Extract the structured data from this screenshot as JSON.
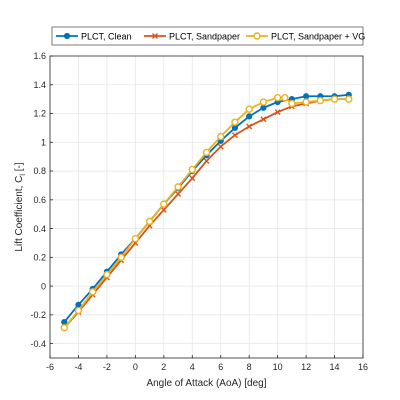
{
  "chart_data": {
    "type": "line",
    "title": "",
    "xlabel": "Angle of Attack (AoA) [deg]",
    "ylabel": "Lift Coefficient, C",
    "ylabel_subscript": "l",
    "ylabel_suffix": " [-]",
    "xlim": [
      -6,
      16
    ],
    "ylim": [
      -0.5,
      1.6
    ],
    "xticks": [
      -6,
      -4,
      -2,
      0,
      2,
      4,
      6,
      8,
      10,
      12,
      14,
      16
    ],
    "yticks": [
      -0.4,
      -0.2,
      0,
      0.2,
      0.4,
      0.6,
      0.8,
      1,
      1.2,
      1.4,
      1.6
    ],
    "xtick_labels": [
      "-6",
      "-4",
      "-2",
      "0",
      "2",
      "4",
      "6",
      "8",
      "10",
      "12",
      "14",
      "16"
    ],
    "ytick_labels": [
      "-0.4",
      "-0.2",
      "0",
      "0.2",
      "0.4",
      "0.6",
      "0.8",
      "1",
      "1.2",
      "1.4",
      "1.6"
    ],
    "grid": true,
    "legend_placement": "top",
    "series": [
      {
        "name": "PLCT, Clean",
        "color": "#0072BD",
        "marker": "circle",
        "x": [
          -5,
          -4,
          -3,
          -2,
          -1,
          0,
          1,
          2,
          3,
          4,
          5,
          6,
          7,
          8,
          9,
          10,
          11,
          12,
          13,
          14,
          15
        ],
        "y": [
          -0.25,
          -0.13,
          -0.02,
          0.1,
          0.22,
          0.33,
          0.45,
          0.57,
          0.68,
          0.8,
          0.91,
          1.01,
          1.1,
          1.18,
          1.24,
          1.28,
          1.3,
          1.32,
          1.32,
          1.32,
          1.33
        ]
      },
      {
        "name": "PLCT, Sandpaper",
        "color": "#D95319",
        "marker": "x",
        "x": [
          -5,
          -4,
          -3,
          -2,
          -1,
          0,
          1,
          2,
          3,
          4,
          5,
          6,
          7,
          8,
          9,
          10,
          11,
          12,
          13,
          14,
          15
        ],
        "y": [
          -0.29,
          -0.18,
          -0.06,
          0.06,
          0.18,
          0.3,
          0.42,
          0.53,
          0.64,
          0.75,
          0.87,
          0.97,
          1.05,
          1.11,
          1.16,
          1.21,
          1.25,
          1.27,
          1.29,
          1.3,
          1.3
        ]
      },
      {
        "name": "PLCT, Sandpaper + VG",
        "color": "#EDB120",
        "marker": "circle-open",
        "x": [
          -5,
          -4,
          -3,
          -2,
          -1,
          0,
          1,
          2,
          3,
          4,
          5,
          6,
          7,
          8,
          9,
          10,
          10.5,
          11,
          12,
          13,
          14,
          15
        ],
        "y": [
          -0.29,
          -0.17,
          -0.04,
          0.08,
          0.2,
          0.33,
          0.45,
          0.57,
          0.69,
          0.81,
          0.93,
          1.04,
          1.14,
          1.23,
          1.28,
          1.31,
          1.31,
          1.27,
          1.28,
          1.29,
          1.3,
          1.3
        ]
      }
    ]
  }
}
